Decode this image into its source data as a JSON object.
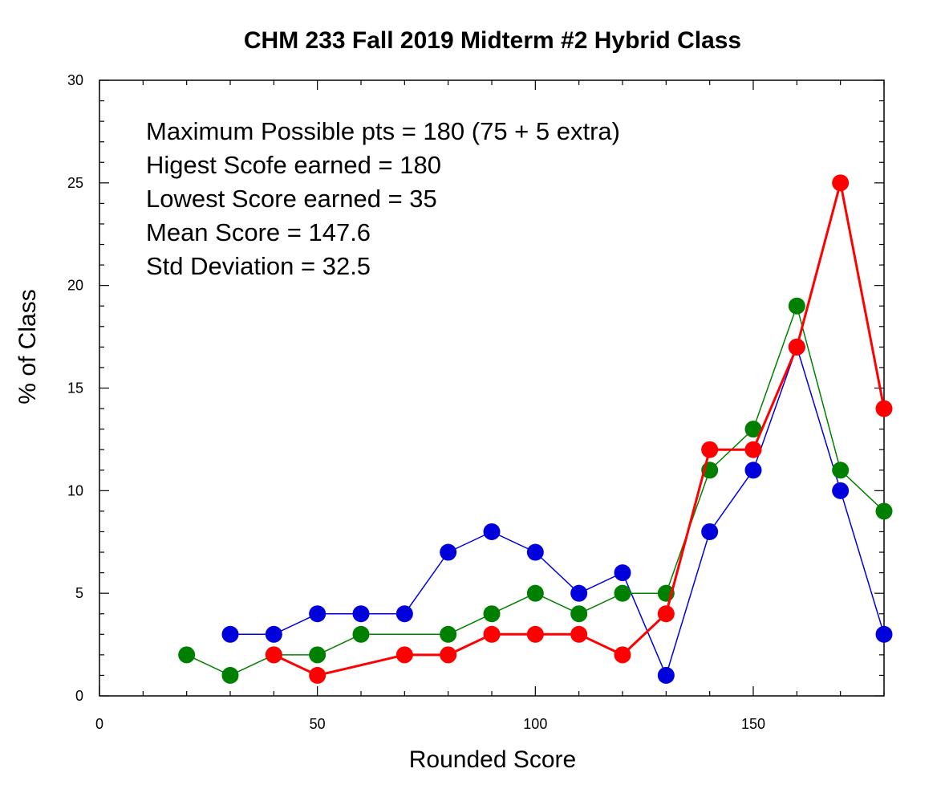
{
  "chart_data": {
    "type": "line",
    "title": "CHM 233 Fall 2019 Midterm #2 Hybrid Class",
    "xlabel": "Rounded Score",
    "ylabel": "% of Class",
    "xlim": [
      0,
      180
    ],
    "ylim": [
      0,
      30
    ],
    "x_ticks": [
      0,
      50,
      100,
      150
    ],
    "y_ticks": [
      0,
      5,
      10,
      15,
      20,
      25,
      30
    ],
    "grid": false,
    "legend": "none",
    "annotations": [
      "Maximum Possible pts = 180 (75 + 5 extra)",
      "Higest Scofe earned = 180",
      "Lowest Score earned = 35",
      "Mean Score = 147.6",
      "Std Deviation = 32.5"
    ],
    "series": [
      {
        "color": "#0000dd",
        "points": [
          [
            30,
            3
          ],
          [
            40,
            3
          ],
          [
            50,
            4
          ],
          [
            60,
            4
          ],
          [
            70,
            4
          ],
          [
            80,
            7
          ],
          [
            90,
            8
          ],
          [
            100,
            7
          ],
          [
            110,
            5
          ],
          [
            120,
            6
          ],
          [
            130,
            1
          ],
          [
            140,
            8
          ],
          [
            150,
            11
          ],
          [
            160,
            17
          ],
          [
            170,
            10
          ],
          [
            180,
            3
          ]
        ]
      },
      {
        "color": "#008000",
        "points": [
          [
            20,
            2
          ],
          [
            30,
            1
          ],
          [
            40,
            2
          ],
          [
            50,
            2
          ],
          [
            60,
            3
          ],
          [
            80,
            3
          ],
          [
            90,
            4
          ],
          [
            100,
            5
          ],
          [
            110,
            4
          ],
          [
            120,
            5
          ],
          [
            130,
            5
          ],
          [
            140,
            11
          ],
          [
            150,
            13
          ],
          [
            160,
            19
          ],
          [
            170,
            11
          ],
          [
            180,
            9
          ]
        ]
      },
      {
        "color": "#ff0000",
        "points": [
          [
            40,
            2
          ],
          [
            50,
            1
          ],
          [
            70,
            2
          ],
          [
            80,
            2
          ],
          [
            90,
            3
          ],
          [
            100,
            3
          ],
          [
            110,
            3
          ],
          [
            120,
            2
          ],
          [
            130,
            4
          ],
          [
            140,
            12
          ],
          [
            150,
            12
          ],
          [
            160,
            17
          ],
          [
            170,
            25
          ],
          [
            180,
            14
          ]
        ]
      }
    ]
  }
}
